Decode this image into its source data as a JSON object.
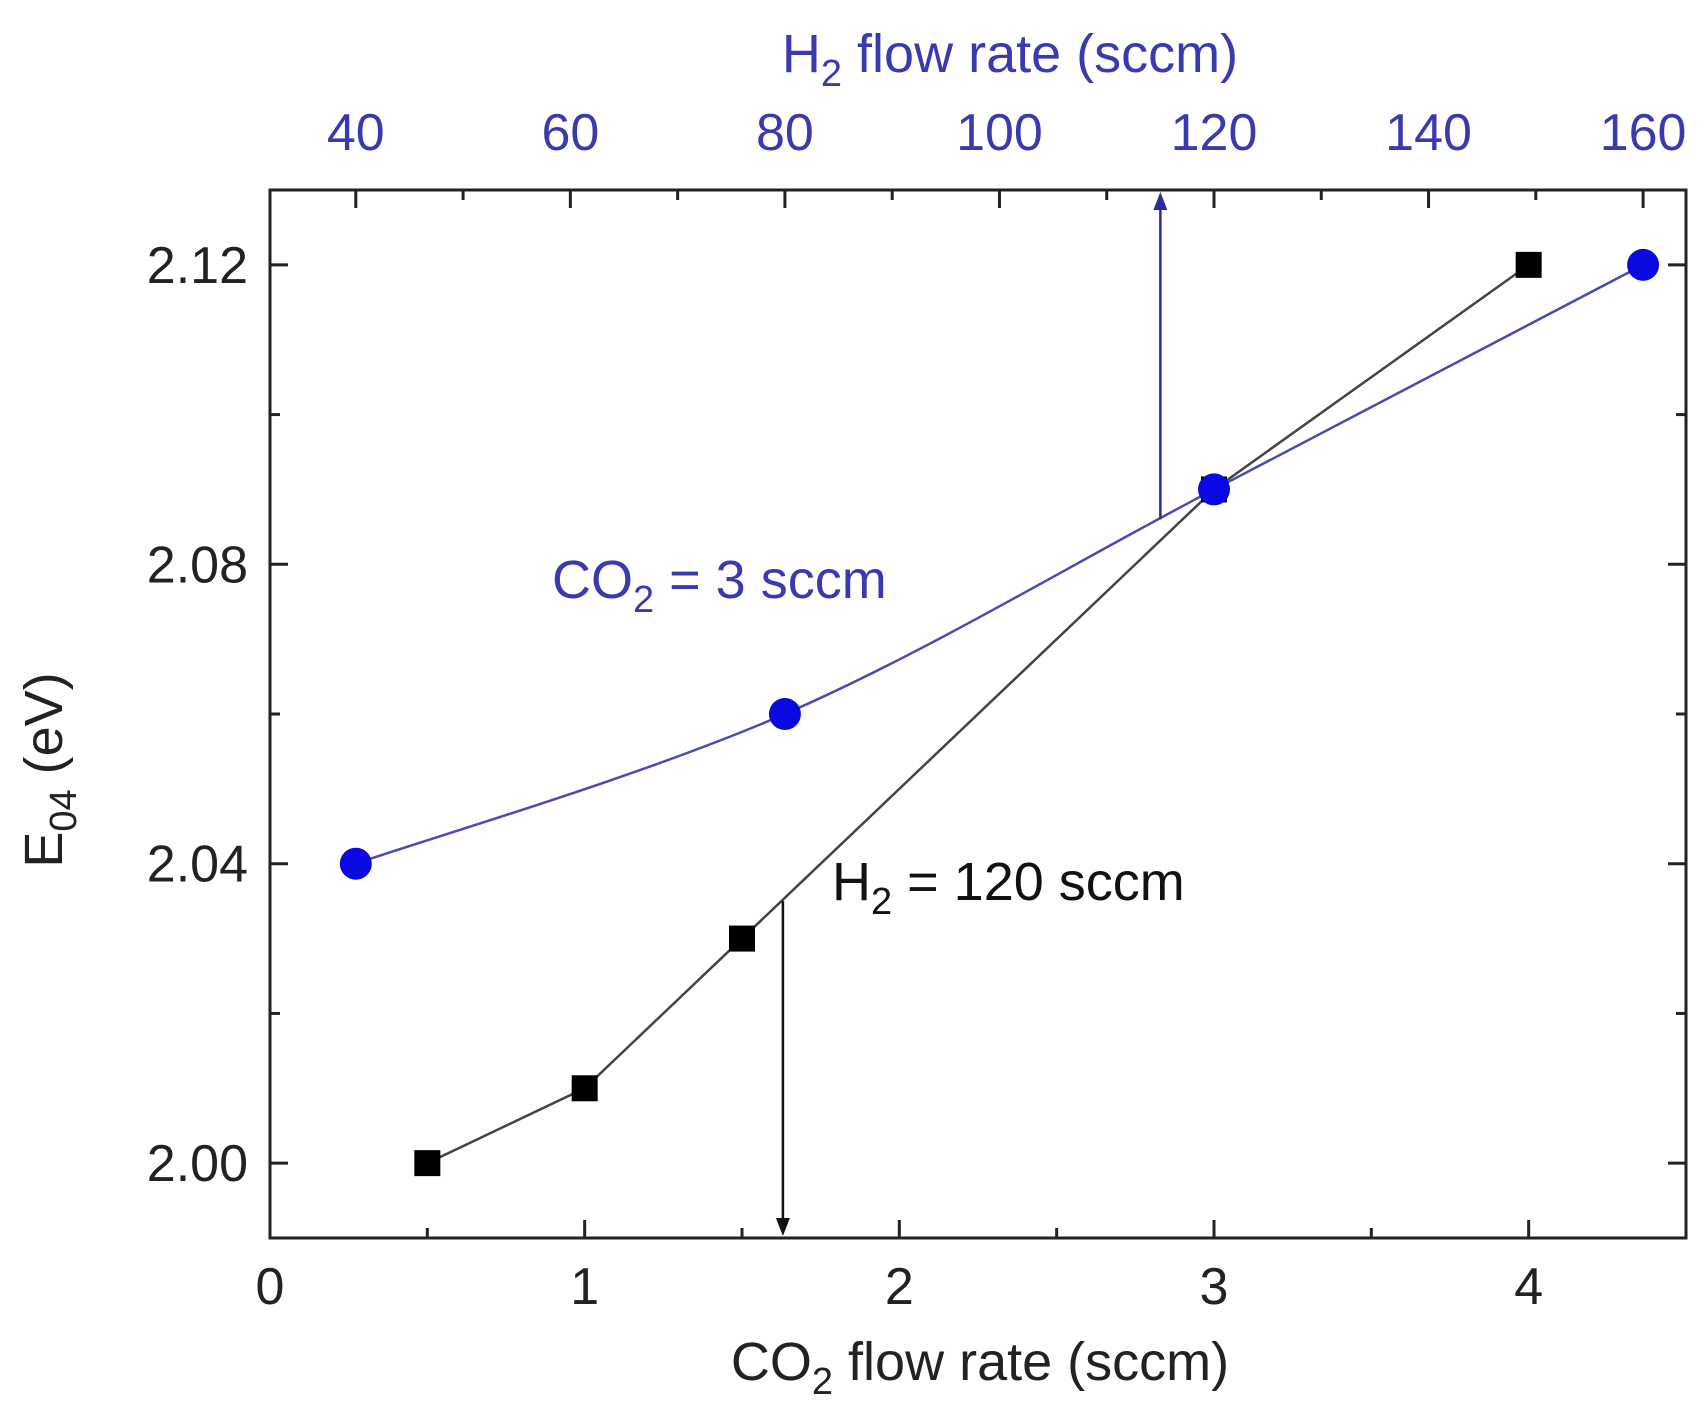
{
  "chart_data": {
    "type": "line",
    "bottom_axis": {
      "title": {
        "pre": "CO",
        "sub": "2",
        "post": " flow rate (sccm)"
      },
      "range": [
        0,
        4.5
      ],
      "ticks": [
        0,
        1,
        2,
        3,
        4
      ],
      "tick_labels": [
        "0",
        "1",
        "2",
        "3",
        "4"
      ],
      "minor_step": 0.5
    },
    "top_axis": {
      "title": {
        "pre": "H",
        "sub": "2",
        "post": " flow rate (sccm)"
      },
      "range": [
        32,
        164
      ],
      "ticks": [
        40,
        60,
        80,
        100,
        120,
        140,
        160
      ],
      "tick_labels": [
        "40",
        "60",
        "80",
        "100",
        "120",
        "140",
        "160"
      ],
      "minor_step": 10,
      "color": "#3a3ab0"
    },
    "left_axis": {
      "title": {
        "pre": "E",
        "sub": "04",
        "post": " (eV)"
      },
      "range": [
        1.99,
        2.13
      ],
      "ticks": [
        2.0,
        2.04,
        2.08,
        2.12
      ],
      "tick_labels": [
        "2.00",
        "2.04",
        "2.08",
        "2.12"
      ],
      "minor_step": 0.02
    },
    "series": [
      {
        "axis": "bottom",
        "marker": "square",
        "color": "#000000",
        "line_color": "#444444",
        "x": [
          0.5,
          1.0,
          1.5,
          3.0,
          4.0
        ],
        "y": [
          2.0,
          2.01,
          2.03,
          2.09,
          2.12
        ]
      },
      {
        "axis": "top",
        "marker": "circle",
        "color": "#0a0ae0",
        "line_color": "#4a4ab0",
        "x": [
          40,
          80,
          120,
          160
        ],
        "y": [
          2.04,
          2.06,
          2.09,
          2.12
        ]
      }
    ],
    "annotations": [
      {
        "id": "co2-note",
        "pre": "CO",
        "sub": "2",
        "post": " = 3 sccm",
        "color": "#3a3ab0"
      },
      {
        "id": "h2-note",
        "pre": "H",
        "sub": "2",
        "post": " = 120 sccm",
        "color": "#111111"
      }
    ],
    "arrows": [
      {
        "axis": "top",
        "x": 115,
        "y_from": 2.086,
        "direction": "up",
        "color": "#2a2aa0"
      },
      {
        "axis": "bottom",
        "x": 1.63,
        "y_from": 2.035,
        "direction": "down",
        "color": "#111111"
      }
    ],
    "grid": false,
    "legend": "none"
  }
}
